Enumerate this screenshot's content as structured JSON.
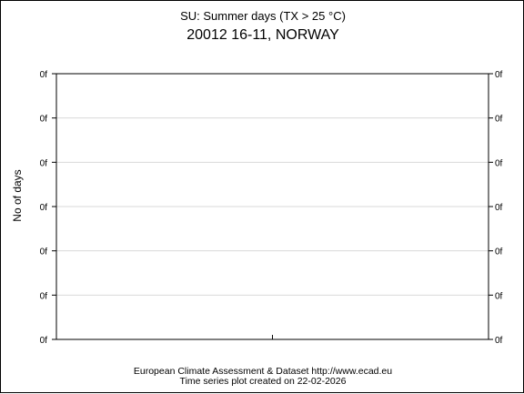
{
  "chart_data": {
    "type": "line",
    "title": "SU: Summer days (TX > 25 °C)",
    "subtitle": "20012 16-11, NORWAY",
    "xlabel": "",
    "ylabel": "No of days",
    "y_tick_labels": [
      "0f",
      "0f",
      "0f",
      "0f",
      "0f",
      "0f",
      "0f"
    ],
    "ylim": [
      0,
      6
    ],
    "grid": true,
    "series": []
  },
  "footer": {
    "line1": "European Climate Assessment & Dataset  http://www.ecad.eu",
    "line2": "Time series plot created on 22-02-2026"
  },
  "colors": {
    "axis": "#000000",
    "grid": "#d9d9d9",
    "background": "#ffffff"
  }
}
